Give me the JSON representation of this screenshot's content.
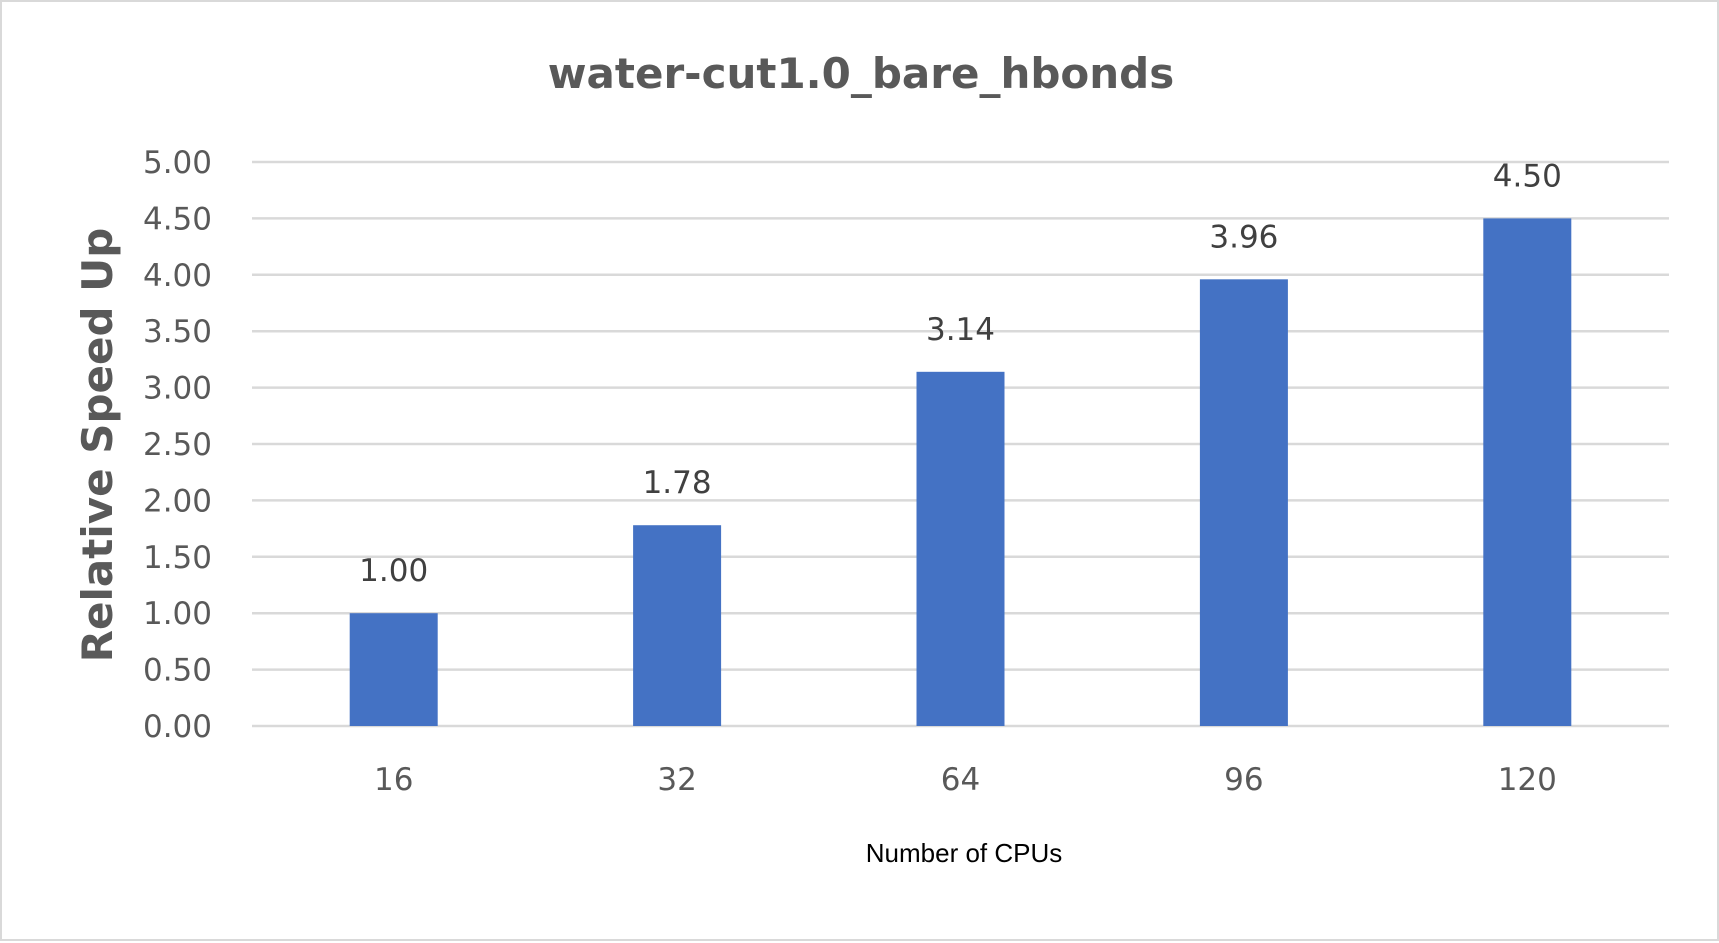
{
  "chart_data": {
    "type": "bar",
    "title": "water-cut1.0_bare_hbonds",
    "xlabel": "Number of CPUs",
    "ylabel": "Relative Speed Up",
    "categories": [
      "16",
      "32",
      "64",
      "96",
      "120"
    ],
    "values": [
      1.0,
      1.78,
      3.14,
      3.96,
      4.5
    ],
    "data_labels": [
      "1.00",
      "1.78",
      "3.14",
      "3.96",
      "4.50"
    ],
    "ylim": [
      0,
      5
    ],
    "yticks": [
      "0.00",
      "0.50",
      "1.00",
      "1.50",
      "2.00",
      "2.50",
      "3.00",
      "3.50",
      "4.00",
      "4.50",
      "5.00"
    ],
    "ytick_values": [
      0,
      0.5,
      1,
      1.5,
      2,
      2.5,
      3,
      3.5,
      4,
      4.5,
      5
    ],
    "grid": true,
    "legend": "none",
    "bar_color": "#4472C4",
    "gridline_color": "#D9D9D9"
  }
}
